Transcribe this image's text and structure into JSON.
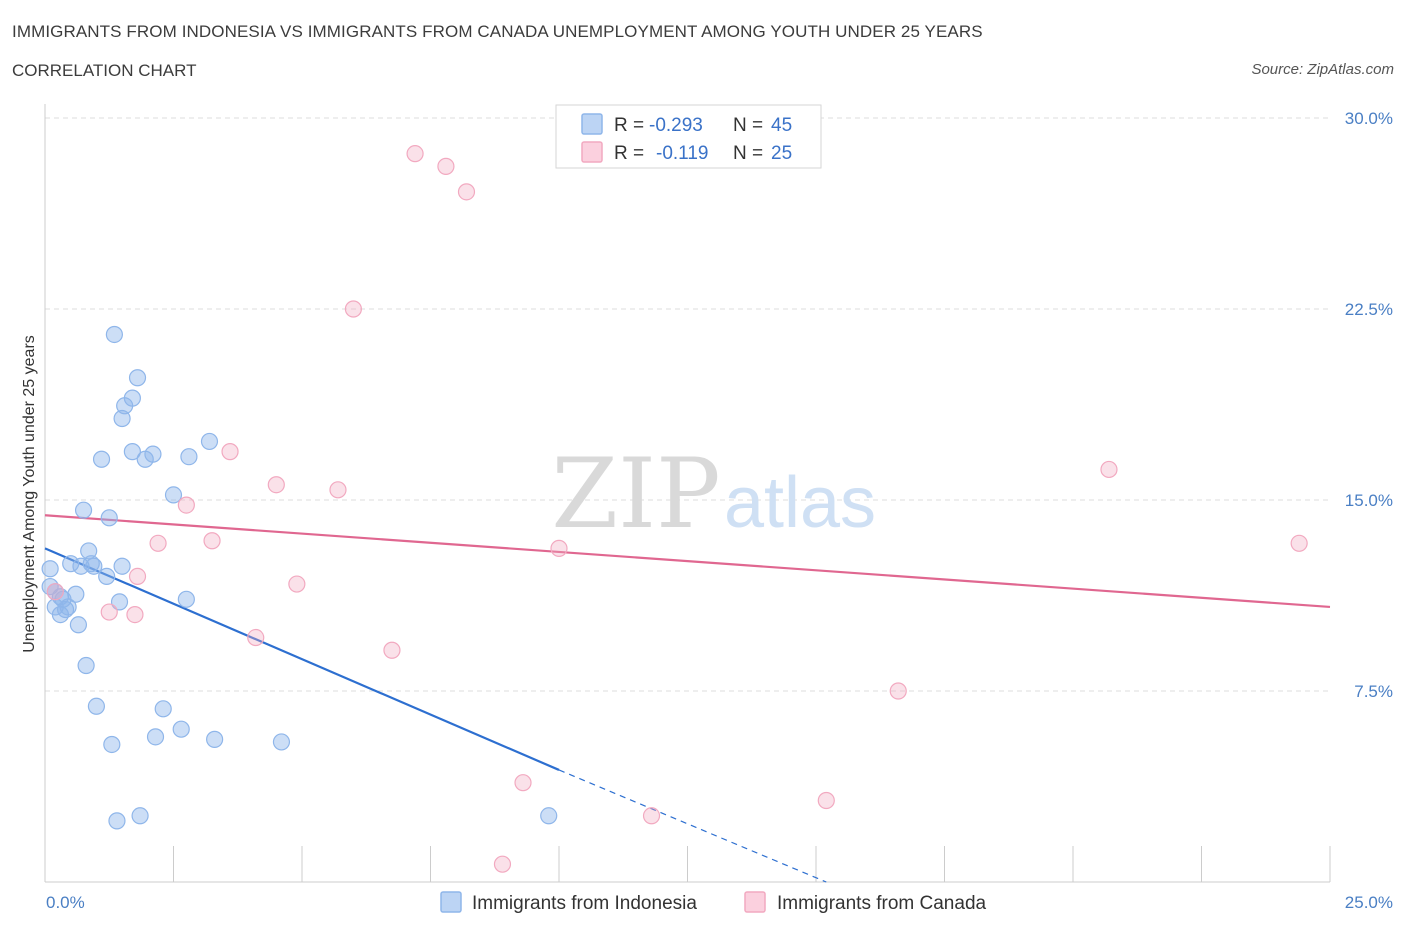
{
  "title": "IMMIGRANTS FROM INDONESIA VS IMMIGRANTS FROM CANADA UNEMPLOYMENT AMONG YOUTH UNDER 25 YEARS",
  "subtitle": "CORRELATION CHART",
  "source": "Source: ZipAtlas.com",
  "watermark": {
    "zip": "ZIP",
    "atlas": "atlas"
  },
  "legend": {
    "r_label": "R =",
    "n_label": "N =",
    "rows": [
      {
        "r": "-0.293",
        "n": "45"
      },
      {
        "r": "-0.119",
        "n": "25"
      }
    ]
  },
  "chart_data": {
    "type": "scatter",
    "x_axis": {
      "min": 0,
      "max": 25,
      "tick_labels": [
        "0.0%",
        "25.0%"
      ]
    },
    "y_axis": {
      "min": 0,
      "max": 30,
      "title": "Unemployment Among Youth under 25 years",
      "tick_labels": [
        "7.5%",
        "15.0%",
        "22.5%",
        "30.0%"
      ],
      "tick_values": [
        7.5,
        15.0,
        22.5,
        30.0
      ]
    },
    "colors": {
      "indonesia": "#8fb6ea",
      "indonesia_line": "#2d6fd0",
      "canada": "#f2a9c0",
      "canada_line": "#e06790"
    },
    "series": [
      {
        "name": "Immigrants from Indonesia",
        "r": -0.293,
        "n": 45,
        "trend": {
          "x0": 0,
          "y0": 13.1,
          "x1": 10,
          "y1": 4.4,
          "dash_to_x": 15.2,
          "dash_to_y": 0
        },
        "points": [
          [
            0.1,
            12.3
          ],
          [
            0.1,
            11.6
          ],
          [
            0.2,
            11.4
          ],
          [
            0.2,
            10.8
          ],
          [
            0.3,
            10.5
          ],
          [
            0.3,
            11.2
          ],
          [
            0.35,
            11.1
          ],
          [
            0.4,
            10.7
          ],
          [
            0.45,
            10.8
          ],
          [
            0.5,
            12.5
          ],
          [
            0.6,
            11.3
          ],
          [
            0.65,
            10.1
          ],
          [
            0.7,
            12.4
          ],
          [
            0.75,
            14.6
          ],
          [
            0.8,
            8.5
          ],
          [
            0.85,
            13.0
          ],
          [
            0.9,
            12.5
          ],
          [
            0.95,
            12.4
          ],
          [
            1.0,
            6.9
          ],
          [
            1.1,
            16.6
          ],
          [
            1.2,
            12.0
          ],
          [
            1.25,
            14.3
          ],
          [
            1.3,
            5.4
          ],
          [
            1.35,
            21.5
          ],
          [
            1.4,
            2.4
          ],
          [
            1.45,
            11.0
          ],
          [
            1.5,
            12.4
          ],
          [
            1.5,
            18.2
          ],
          [
            1.55,
            18.7
          ],
          [
            1.7,
            19.0
          ],
          [
            1.7,
            16.9
          ],
          [
            1.8,
            19.8
          ],
          [
            1.85,
            2.6
          ],
          [
            1.95,
            16.6
          ],
          [
            2.1,
            16.8
          ],
          [
            2.15,
            5.7
          ],
          [
            2.3,
            6.8
          ],
          [
            2.5,
            15.2
          ],
          [
            2.65,
            6.0
          ],
          [
            2.75,
            11.1
          ],
          [
            2.8,
            16.7
          ],
          [
            3.2,
            17.3
          ],
          [
            3.3,
            5.6
          ],
          [
            4.6,
            5.5
          ],
          [
            9.8,
            2.6
          ]
        ]
      },
      {
        "name": "Immigrants from Canada",
        "r": -0.119,
        "n": 25,
        "trend": {
          "x0": 0,
          "y0": 14.4,
          "x1": 25,
          "y1": 10.8
        },
        "points": [
          [
            0.2,
            11.4
          ],
          [
            1.25,
            10.6
          ],
          [
            1.75,
            10.5
          ],
          [
            1.8,
            12.0
          ],
          [
            2.2,
            13.3
          ],
          [
            2.75,
            14.8
          ],
          [
            3.25,
            13.4
          ],
          [
            3.6,
            16.9
          ],
          [
            4.1,
            9.6
          ],
          [
            4.5,
            15.6
          ],
          [
            4.9,
            11.7
          ],
          [
            5.7,
            15.4
          ],
          [
            6.0,
            22.5
          ],
          [
            6.75,
            9.1
          ],
          [
            7.2,
            28.6
          ],
          [
            7.8,
            28.1
          ],
          [
            8.2,
            27.1
          ],
          [
            8.9,
            0.7
          ],
          [
            9.3,
            3.9
          ],
          [
            10.0,
            13.1
          ],
          [
            11.8,
            2.6
          ],
          [
            15.2,
            3.2
          ],
          [
            16.6,
            7.5
          ],
          [
            20.7,
            16.2
          ],
          [
            24.4,
            13.3
          ]
        ]
      }
    ]
  }
}
